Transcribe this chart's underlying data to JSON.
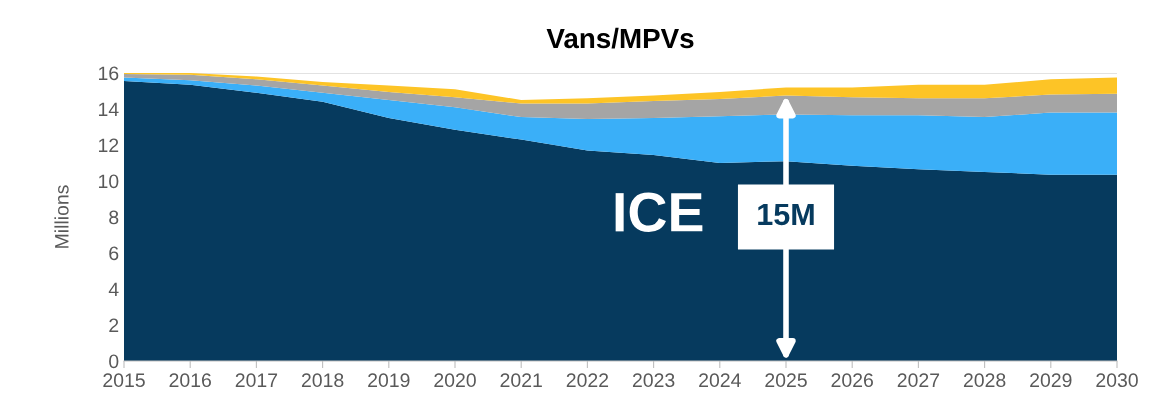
{
  "chart_data": {
    "type": "area",
    "stacked": true,
    "title": "Vans/MPVs",
    "ylabel": "Millions",
    "x": [
      2015,
      2016,
      2017,
      2018,
      2019,
      2020,
      2021,
      2022,
      2023,
      2024,
      2025,
      2026,
      2027,
      2028,
      2029,
      2030
    ],
    "series": [
      {
        "color": "#063a5e",
        "values": [
          15.55,
          15.35,
          14.9,
          14.4,
          13.5,
          12.85,
          12.3,
          11.7,
          11.45,
          11.0,
          11.1,
          10.85,
          10.65,
          10.5,
          10.35,
          10.35
        ]
      },
      {
        "color": "#3aaff8",
        "values": [
          0.2,
          0.25,
          0.4,
          0.5,
          1.0,
          1.25,
          1.25,
          1.75,
          2.05,
          2.6,
          2.6,
          2.8,
          3.0,
          3.05,
          3.45,
          3.45
        ]
      },
      {
        "color": "#a5a5a5",
        "values": [
          0.2,
          0.3,
          0.35,
          0.4,
          0.45,
          0.55,
          0.75,
          0.85,
          0.95,
          0.95,
          1.05,
          1.0,
          0.95,
          1.05,
          1.0,
          1.05
        ]
      },
      {
        "color": "#fdc426",
        "values": [
          0.05,
          0.1,
          0.15,
          0.2,
          0.35,
          0.45,
          0.2,
          0.3,
          0.3,
          0.4,
          0.45,
          0.55,
          0.75,
          0.75,
          0.85,
          0.9
        ]
      }
    ],
    "xlim": [
      2015,
      2030
    ],
    "xticks": [
      2015,
      2016,
      2017,
      2018,
      2019,
      2020,
      2021,
      2022,
      2023,
      2024,
      2025,
      2026,
      2027,
      2028,
      2029,
      2030
    ],
    "ylim": [
      0,
      16
    ],
    "yticks": [
      0,
      2,
      4,
      6,
      8,
      10,
      12,
      14,
      16
    ],
    "grid": "y",
    "legend": false,
    "annotations": [
      "ICE",
      {
        "text": "15M",
        "x": 2025,
        "y": 14.75
      }
    ]
  }
}
